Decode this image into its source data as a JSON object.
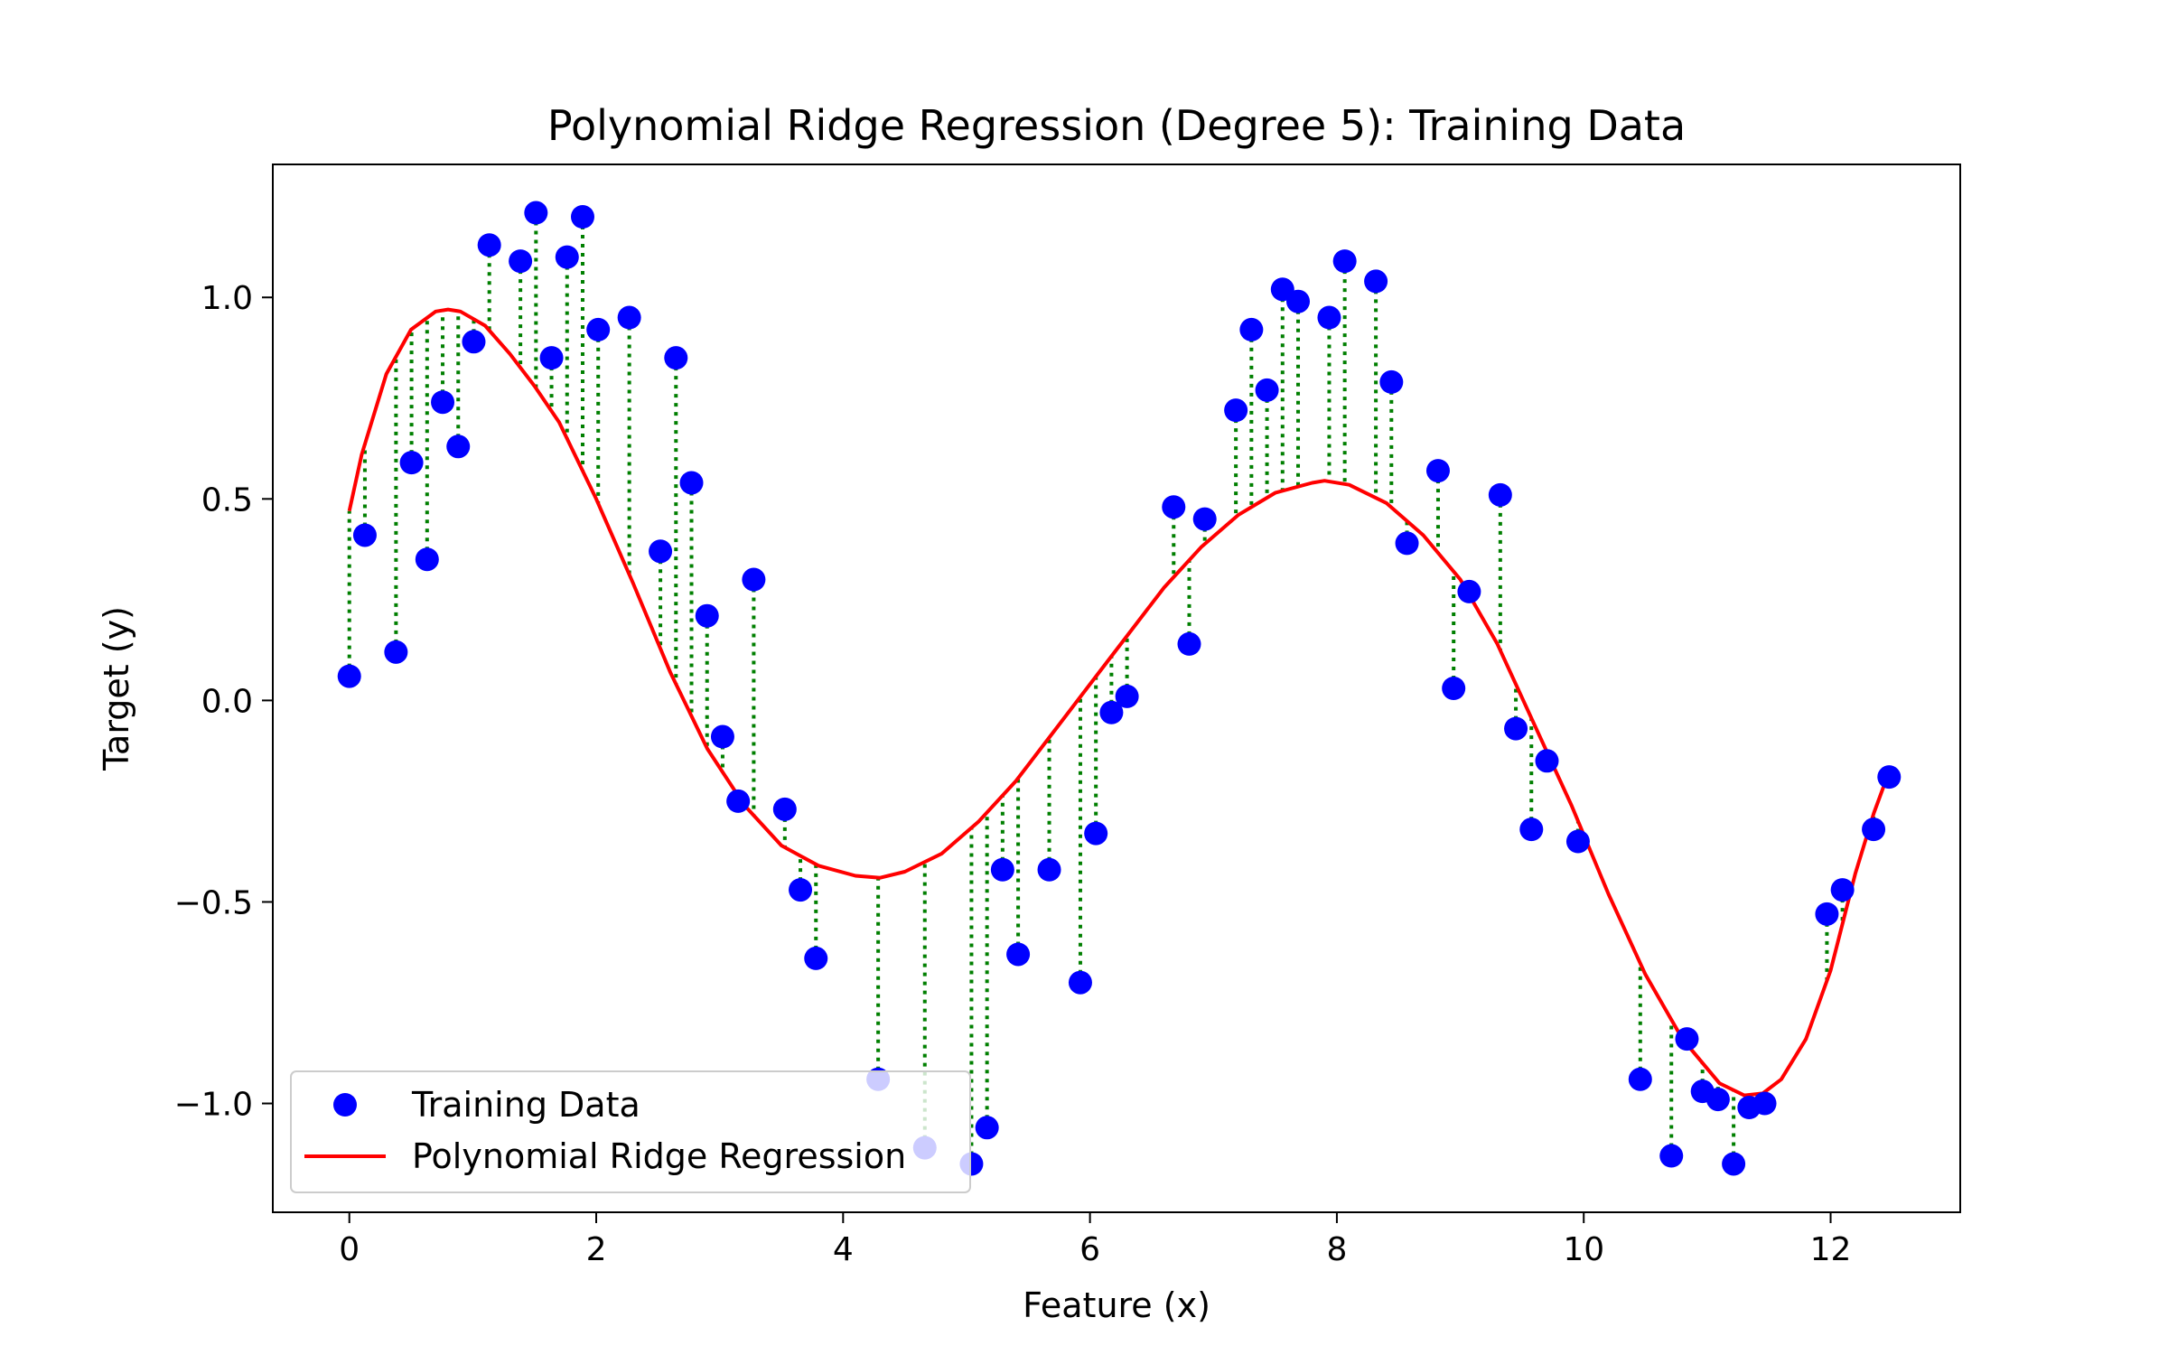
{
  "chart_data": {
    "type": "scatter",
    "title": "Polynomial Ridge Regression (Degree 5): Training Data",
    "xlabel": "Feature (x)",
    "ylabel": "Target (y)",
    "xlim": [
      -0.62,
      13.05
    ],
    "ylim": [
      -1.27,
      1.33
    ],
    "xticks": [
      0,
      2,
      4,
      6,
      8,
      10,
      12
    ],
    "xtick_labels": [
      "0",
      "2",
      "4",
      "6",
      "8",
      "10",
      "12"
    ],
    "yticks": [
      -1.0,
      -0.5,
      0.0,
      0.5,
      1.0
    ],
    "ytick_labels": [
      "−1.0",
      "−0.5",
      "0.0",
      "0.5",
      "1.0"
    ],
    "grid": false,
    "legend": {
      "placement": "lower-left",
      "entries": [
        "Training Data",
        "Polynomial Ridge Regression"
      ]
    },
    "colors": {
      "points": "#0000ff",
      "fit_line": "#ff0000",
      "residuals": "#007f00"
    },
    "series": [
      {
        "name": "Training Data",
        "type": "scatter",
        "x": [
          0.0,
          0.126,
          0.378,
          0.504,
          0.63,
          0.756,
          0.882,
          1.008,
          1.134,
          1.386,
          1.512,
          1.638,
          1.764,
          1.89,
          2.016,
          2.268,
          2.52,
          2.646,
          2.772,
          2.898,
          3.024,
          3.15,
          3.276,
          3.528,
          3.654,
          3.78,
          4.284,
          4.662,
          5.04,
          5.166,
          5.292,
          5.418,
          5.67,
          5.922,
          6.048,
          6.174,
          6.3,
          6.678,
          6.804,
          6.93,
          7.182,
          7.308,
          7.434,
          7.56,
          7.686,
          7.938,
          8.064,
          8.316,
          8.442,
          8.568,
          8.82,
          8.946,
          9.072,
          9.324,
          9.45,
          9.576,
          9.702,
          9.954,
          10.458,
          10.71,
          10.836,
          10.962,
          11.088,
          11.214,
          11.34,
          11.466,
          11.97,
          12.096,
          12.348,
          12.474
        ],
        "y": [
          0.06,
          0.41,
          0.12,
          0.59,
          0.35,
          0.74,
          0.63,
          0.89,
          1.13,
          1.09,
          1.21,
          0.85,
          1.1,
          1.2,
          0.92,
          0.95,
          0.37,
          0.85,
          0.54,
          0.21,
          -0.09,
          -0.25,
          0.3,
          -0.27,
          -0.47,
          -0.64,
          -0.94,
          -1.11,
          -1.15,
          -1.06,
          -0.42,
          -0.63,
          -0.42,
          -0.7,
          -0.33,
          -0.03,
          0.01,
          0.48,
          0.14,
          0.45,
          0.72,
          0.92,
          0.77,
          1.02,
          0.99,
          0.95,
          1.09,
          1.04,
          0.79,
          0.39,
          0.57,
          0.03,
          0.27,
          0.51,
          -0.07,
          -0.32,
          -0.15,
          -0.35,
          -0.94,
          -1.13,
          -0.84,
          -0.97,
          -0.99,
          -1.15,
          -1.01,
          -1.0,
          -0.53,
          -0.47,
          -0.32,
          -0.19
        ]
      },
      {
        "name": "Polynomial Ridge Regression",
        "type": "line",
        "x": [
          0.0,
          0.1,
          0.3,
          0.5,
          0.7,
          0.8,
          0.9,
          1.1,
          1.3,
          1.5,
          1.7,
          2.0,
          2.3,
          2.6,
          2.9,
          3.2,
          3.5,
          3.8,
          4.1,
          4.3,
          4.5,
          4.8,
          5.1,
          5.4,
          5.7,
          6.0,
          6.3,
          6.6,
          6.9,
          7.2,
          7.5,
          7.8,
          7.9,
          8.1,
          8.4,
          8.7,
          9.0,
          9.3,
          9.6,
          9.9,
          10.2,
          10.5,
          10.8,
          11.1,
          11.3,
          11.45,
          11.6,
          11.8,
          12.0,
          12.2,
          12.35,
          12.47
        ],
        "y": [
          0.47,
          0.61,
          0.81,
          0.92,
          0.965,
          0.97,
          0.965,
          0.93,
          0.86,
          0.78,
          0.69,
          0.5,
          0.29,
          0.07,
          -0.12,
          -0.26,
          -0.36,
          -0.41,
          -0.435,
          -0.44,
          -0.425,
          -0.38,
          -0.3,
          -0.2,
          -0.08,
          0.04,
          0.16,
          0.28,
          0.38,
          0.46,
          0.515,
          0.54,
          0.545,
          0.535,
          0.49,
          0.41,
          0.3,
          0.14,
          -0.06,
          -0.26,
          -0.48,
          -0.68,
          -0.84,
          -0.95,
          -0.98,
          -0.975,
          -0.94,
          -0.84,
          -0.67,
          -0.43,
          -0.28,
          -0.18
        ]
      }
    ]
  }
}
